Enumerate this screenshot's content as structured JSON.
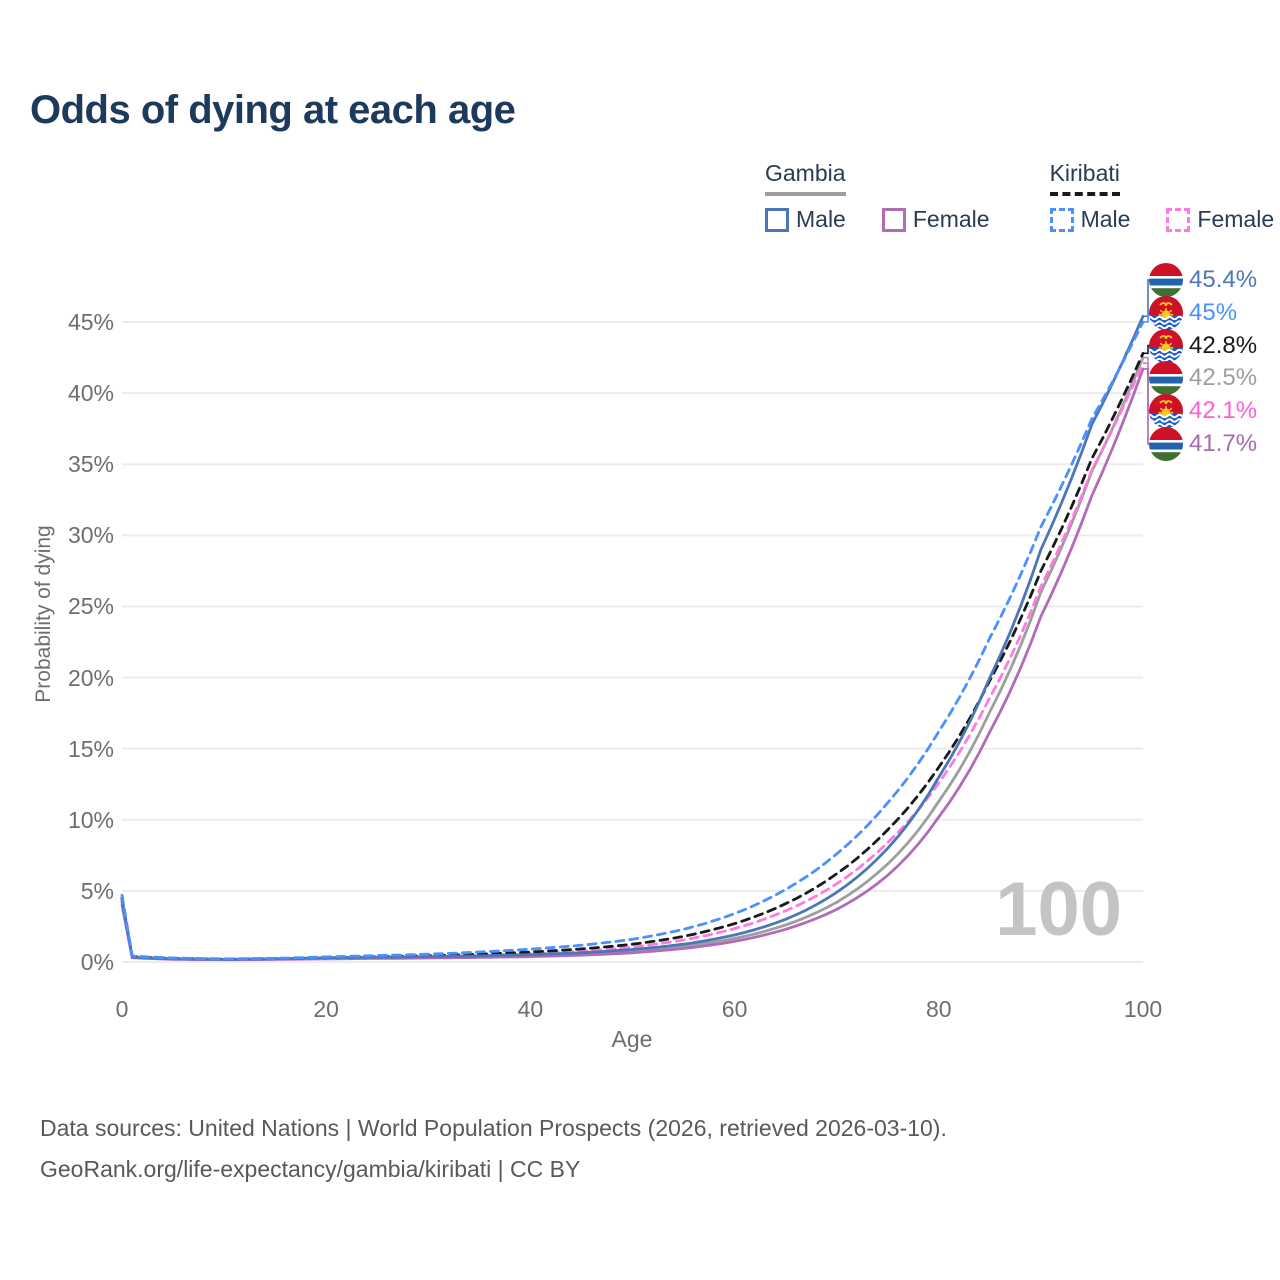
{
  "title": "Odds of dying at each age",
  "watermark": "100",
  "footer": {
    "line1": "Data sources: United Nations | World Population Prospects (2026, retrieved 2026-03-10).",
    "line2": "GeoRank.org/life-expectancy/gambia/kiribati | CC BY"
  },
  "legend": {
    "groups": [
      {
        "title": "Gambia",
        "underline_style": "solid",
        "underline_color": "#9e9e9e",
        "items": [
          {
            "label": "Male",
            "color": "#4b76b8",
            "dashed": false
          },
          {
            "label": "Female",
            "color": "#b06cb8",
            "dashed": false
          }
        ]
      },
      {
        "title": "Kiribati",
        "underline_style": "dashed",
        "underline_color": "#1a1a1a",
        "items": [
          {
            "label": "Male",
            "color": "#4a90ff",
            "dashed": true
          },
          {
            "label": "Female",
            "color": "#ff7ae0",
            "dashed": true
          }
        ]
      }
    ]
  },
  "chart_data": {
    "type": "line",
    "title": "Odds of dying at each age",
    "xlabel": "Age",
    "ylabel": "Probability of dying",
    "unit": "percent",
    "xlim": [
      0,
      100
    ],
    "ylim": [
      0,
      47
    ],
    "x_tick_values": [
      0,
      20,
      40,
      60,
      80,
      100
    ],
    "x_tick_labels": [
      "0",
      "20",
      "40",
      "60",
      "80",
      "100"
    ],
    "y_tick_values": [
      0,
      5,
      10,
      15,
      20,
      25,
      30,
      35,
      40,
      45
    ],
    "y_tick_labels": [
      "0%",
      "5%",
      "10%",
      "15%",
      "20%",
      "25%",
      "30%",
      "35%",
      "40%",
      "45%"
    ],
    "grid": "horizontal-only",
    "legend_position": "top-right",
    "ages": [
      0,
      1,
      5,
      10,
      15,
      20,
      25,
      30,
      35,
      40,
      45,
      50,
      55,
      60,
      65,
      70,
      75,
      80,
      85,
      90,
      95,
      100
    ],
    "series": [
      {
        "name": "Gambia All",
        "country": "Gambia",
        "flag": "gambia",
        "color": "#9e9e9e",
        "dashed": false,
        "values": [
          4.2,
          0.33,
          0.21,
          0.17,
          0.2,
          0.26,
          0.29,
          0.32,
          0.37,
          0.45,
          0.56,
          0.76,
          1.1,
          1.65,
          2.6,
          4.2,
          6.9,
          11.3,
          17.6,
          26.0,
          34.5,
          42.5
        ]
      },
      {
        "name": "Gambia Female",
        "country": "Gambia",
        "flag": "gambia",
        "color": "#b06cb8",
        "dashed": false,
        "values": [
          4.0,
          0.3,
          0.19,
          0.16,
          0.18,
          0.22,
          0.25,
          0.28,
          0.32,
          0.38,
          0.48,
          0.65,
          0.95,
          1.45,
          2.3,
          3.7,
          6.1,
          10.2,
          16.2,
          24.3,
          32.8,
          41.7
        ]
      },
      {
        "name": "Kiribati Female",
        "country": "Kiribati",
        "flag": "kiribati",
        "color": "#ff7ae0",
        "dashed": true,
        "values": [
          4.3,
          0.35,
          0.23,
          0.18,
          0.21,
          0.26,
          0.31,
          0.37,
          0.46,
          0.58,
          0.76,
          1.05,
          1.55,
          2.35,
          3.6,
          5.5,
          8.4,
          12.6,
          18.6,
          26.4,
          34.6,
          42.1
        ]
      },
      {
        "name": "Kiribati All",
        "country": "Kiribati",
        "flag": "kiribati",
        "color": "#1a1a1a",
        "dashed": true,
        "values": [
          4.5,
          0.38,
          0.25,
          0.2,
          0.23,
          0.3,
          0.37,
          0.44,
          0.55,
          0.7,
          0.92,
          1.25,
          1.8,
          2.7,
          4.1,
          6.2,
          9.3,
          13.7,
          19.8,
          27.5,
          35.4,
          42.8
        ]
      },
      {
        "name": "Gambia Male",
        "country": "Gambia",
        "flag": "gambia",
        "color": "#4b76b8",
        "dashed": false,
        "values": [
          4.4,
          0.35,
          0.22,
          0.18,
          0.22,
          0.3,
          0.33,
          0.37,
          0.43,
          0.52,
          0.65,
          0.88,
          1.25,
          1.9,
          3.0,
          4.9,
          8.0,
          13.0,
          20.0,
          29.0,
          37.8,
          45.4
        ]
      },
      {
        "name": "Kiribati Male",
        "country": "Kiribati",
        "flag": "kiribati",
        "color": "#4a90ff",
        "dashed": true,
        "values": [
          4.7,
          0.42,
          0.28,
          0.22,
          0.26,
          0.36,
          0.45,
          0.55,
          0.7,
          0.9,
          1.18,
          1.6,
          2.3,
          3.4,
          5.1,
          7.6,
          11.2,
          16.2,
          22.8,
          30.6,
          38.2,
          45.0
        ]
      }
    ],
    "end_labels": [
      {
        "text": "45.4%",
        "series": "Gambia Male",
        "flag": "gambia",
        "color": "#4b76b8"
      },
      {
        "text": "45%",
        "series": "Kiribati Male",
        "flag": "kiribati",
        "color": "#4a90ff"
      },
      {
        "text": "42.8%",
        "series": "Kiribati All",
        "flag": "kiribati",
        "color": "#1a1a1a"
      },
      {
        "text": "42.5%",
        "series": "Gambia All",
        "flag": "gambia",
        "color": "#9e9e9e"
      },
      {
        "text": "42.1%",
        "series": "Kiribati Female",
        "flag": "kiribati",
        "color": "#ff5ed8"
      },
      {
        "text": "41.7%",
        "series": "Gambia Female",
        "flag": "gambia",
        "color": "#a76ab0"
      }
    ]
  },
  "flag_colors": {
    "gambia": {
      "red": "#ce1126",
      "blue": "#2263ad",
      "green": "#3f7032",
      "white": "#ffffff"
    },
    "kiribati": {
      "red": "#ce1126",
      "blue": "#1758c7",
      "yellow": "#ffc726",
      "white": "#ffffff"
    }
  },
  "grid_color": "#ececec"
}
